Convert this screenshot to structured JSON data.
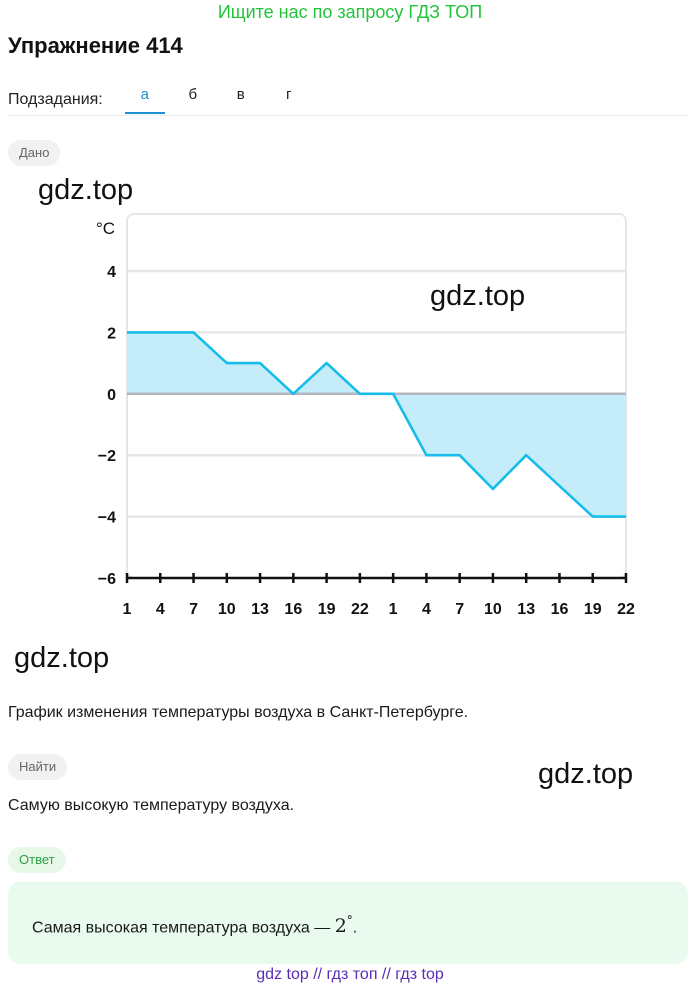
{
  "promo": "Ищите нас по запросу ГДЗ ТОП",
  "title": "Упражнение 414",
  "subtasks": {
    "label": "Подзадания:",
    "tabs": [
      "а",
      "б",
      "в",
      "г"
    ],
    "active": 0
  },
  "given": {
    "badge": "Дано",
    "text": "График изменения температуры воздуха в Санкт-Петербурге."
  },
  "find": {
    "badge": "Найти",
    "text": "Самую высокую температуру воздуха."
  },
  "answer": {
    "badge": "Ответ",
    "text": "Самая высокая температура воздуха —",
    "value": "2",
    "unit": "°",
    "end": "."
  },
  "watermark": "gdz.top",
  "footer": "gdz top  //  гдз топ  //  гдз top",
  "colors": {
    "line": "#17bdea",
    "fill": "#c5ecf9",
    "promo": "#22c43a",
    "accent": "#1a8fd6",
    "footer": "#5a2db5"
  },
  "chart_data": {
    "type": "area",
    "ylabel": "°C",
    "ylim": [
      -6,
      4
    ],
    "yticks": [
      4,
      2,
      0,
      -2,
      -4,
      -6
    ],
    "ytick_labels": [
      "4",
      "2",
      "0",
      "−2",
      "−4",
      "−6"
    ],
    "x_labels": [
      "1",
      "4",
      "7",
      "10",
      "13",
      "16",
      "19",
      "22",
      "1",
      "4",
      "7",
      "10",
      "13",
      "16",
      "19",
      "22"
    ],
    "values": [
      2,
      2,
      2,
      1,
      1,
      0,
      1,
      0,
      0,
      -2,
      -2,
      -3.1,
      -2,
      -3,
      -4,
      -4
    ],
    "grid": true
  }
}
